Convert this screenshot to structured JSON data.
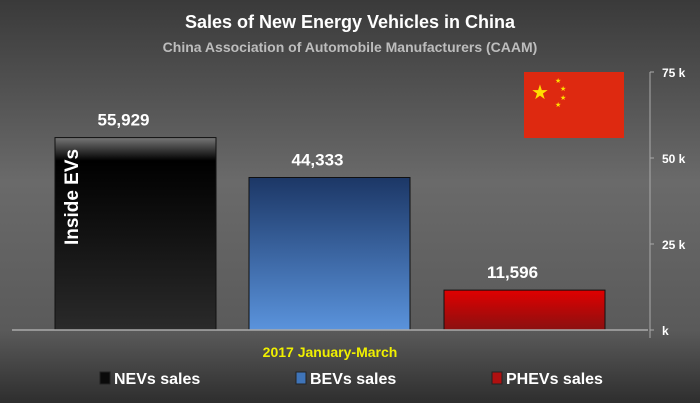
{
  "chart_data": {
    "type": "bar",
    "title": "Sales of New Energy Vehicles in China",
    "subtitle": "China Association of Automobile Manufacturers (CAAM)",
    "xlabel": "2017 January-March",
    "ylabel": "",
    "categories": [
      "NEVs sales",
      "BEVs sales",
      "PHEVs sales"
    ],
    "values": [
      55929,
      44333,
      11596
    ],
    "data_labels": [
      "55,929",
      "44,333",
      "11,596"
    ],
    "ylim": [
      0,
      75000
    ],
    "yticks": [
      0,
      25000,
      50000,
      75000
    ],
    "ytick_labels": [
      "k",
      "25 k",
      "50 k",
      "75 k"
    ],
    "axis_side": "right",
    "legend": [
      "NEVs sales",
      "BEVs sales",
      "PHEVs sales"
    ],
    "legend_placement": "bottom",
    "watermark": "Inside EVs",
    "colors": {
      "nev": "#0a0a0a",
      "bev": "#3f74b8",
      "phev": "#b01010",
      "xlabel": "#f0f000",
      "flag": "#de2910",
      "star": "#ffde00"
    }
  }
}
